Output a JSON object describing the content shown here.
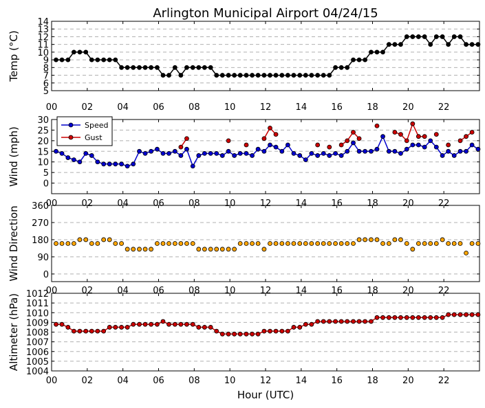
{
  "chart_data": [
    {
      "type": "line",
      "name": "temperature",
      "title": "Arlington Municipal Airport 04/24/15",
      "ylabel": "Temp (°C)",
      "xlim": [
        0,
        24
      ],
      "ylim": [
        5,
        14
      ],
      "yticks": [
        5,
        6,
        7,
        8,
        9,
        10,
        11,
        12,
        13,
        14
      ],
      "xticks": [
        0,
        2,
        4,
        6,
        8,
        10,
        12,
        14,
        16,
        18,
        20,
        22
      ],
      "xticklabels": [
        "00",
        "02",
        "04",
        "06",
        "08",
        "10",
        "12",
        "14",
        "16",
        "18",
        "20",
        "22"
      ],
      "grid": true,
      "series": [
        {
          "color": "#000000",
          "x": [
            0.25,
            0.58,
            0.92,
            1.25,
            1.58,
            1.92,
            2.25,
            2.58,
            2.92,
            3.25,
            3.58,
            3.92,
            4.25,
            4.58,
            4.92,
            5.25,
            5.58,
            5.92,
            6.25,
            6.58,
            6.92,
            7.25,
            7.58,
            7.92,
            8.25,
            8.58,
            8.92,
            9.25,
            9.58,
            9.92,
            10.25,
            10.58,
            10.92,
            11.25,
            11.58,
            11.92,
            12.25,
            12.58,
            12.92,
            13.25,
            13.58,
            13.92,
            14.25,
            14.58,
            14.92,
            15.25,
            15.58,
            15.92,
            16.25,
            16.58,
            16.92,
            17.25,
            17.58,
            17.92,
            18.25,
            18.58,
            18.92,
            19.25,
            19.58,
            19.92,
            20.25,
            20.58,
            20.92,
            21.25,
            21.58,
            21.92,
            22.25,
            22.58,
            22.92,
            23.25,
            23.58,
            23.92
          ],
          "y": [
            9,
            9,
            9,
            10,
            10,
            10,
            9,
            9,
            9,
            9,
            9,
            8,
            8,
            8,
            8,
            8,
            8,
            8,
            7,
            7,
            8,
            7,
            8,
            8,
            8,
            8,
            8,
            7,
            7,
            7,
            7,
            7,
            7,
            7,
            7,
            7,
            7,
            7,
            7,
            7,
            7,
            7,
            7,
            7,
            7,
            7,
            7,
            8,
            8,
            8,
            9,
            9,
            9,
            10,
            10,
            10,
            11,
            11,
            11,
            12,
            12,
            12,
            12,
            11,
            12,
            12,
            11,
            12,
            12,
            11,
            11,
            11
          ]
        }
      ]
    },
    {
      "type": "line",
      "name": "wind",
      "ylabel": "Wind (mph)",
      "xlim": [
        0,
        24
      ],
      "ylim": [
        -5,
        30
      ],
      "yticks": [
        0,
        5,
        10,
        15,
        20,
        25,
        30
      ],
      "xticks": [
        0,
        2,
        4,
        6,
        8,
        10,
        12,
        14,
        16,
        18,
        20,
        22
      ],
      "xticklabels": [
        "00",
        "02",
        "04",
        "06",
        "08",
        "10",
        "12",
        "14",
        "16",
        "18",
        "20",
        "22"
      ],
      "grid": true,
      "legend": "top-left",
      "series": [
        {
          "name": "Speed",
          "color": "#0000cc",
          "x": [
            0.25,
            0.58,
            0.92,
            1.25,
            1.58,
            1.92,
            2.25,
            2.58,
            2.92,
            3.25,
            3.58,
            3.92,
            4.25,
            4.58,
            4.92,
            5.25,
            5.58,
            5.92,
            6.25,
            6.58,
            6.92,
            7.25,
            7.58,
            7.92,
            8.25,
            8.58,
            8.92,
            9.25,
            9.58,
            9.92,
            10.25,
            10.58,
            10.92,
            11.25,
            11.58,
            11.92,
            12.25,
            12.58,
            12.92,
            13.25,
            13.58,
            13.92,
            14.25,
            14.58,
            14.92,
            15.25,
            15.58,
            15.92,
            16.25,
            16.58,
            16.92,
            17.25,
            17.58,
            17.92,
            18.25,
            18.58,
            18.92,
            19.25,
            19.58,
            19.92,
            20.25,
            20.58,
            20.92,
            21.25,
            21.58,
            21.92,
            22.25,
            22.58,
            22.92,
            23.25,
            23.58,
            23.92
          ],
          "y": [
            15,
            14,
            12,
            11,
            10,
            14,
            13,
            10,
            9,
            9,
            9,
            9,
            8,
            9,
            15,
            14,
            15,
            16,
            14,
            14,
            15,
            13,
            16,
            8,
            13,
            14,
            14,
            14,
            13,
            15,
            13,
            14,
            14,
            13,
            16,
            15,
            18,
            17,
            15,
            18,
            14,
            13,
            11,
            14,
            13,
            14,
            13,
            14,
            13,
            15,
            19,
            15,
            15,
            15,
            16,
            22,
            15,
            15,
            14,
            16,
            18,
            18,
            17,
            20,
            17,
            13,
            15,
            13,
            15,
            15,
            18,
            16
          ]
        },
        {
          "name": "Gust",
          "color": "#cc0000",
          "x": [
            7.25,
            7.58,
            9.92,
            10.92,
            11.92,
            12.25,
            12.58,
            14.92,
            15.58,
            16.25,
            16.58,
            16.92,
            17.25,
            18.25,
            19.25,
            19.58,
            19.92,
            20.25,
            20.58,
            20.92,
            21.58,
            22.25,
            22.92,
            23.25,
            23.58
          ],
          "y": [
            17,
            21,
            20,
            18,
            21,
            26,
            23,
            18,
            17,
            18,
            20,
            24,
            21,
            27,
            24,
            23,
            20,
            28,
            22,
            22,
            23,
            18,
            20,
            22,
            24
          ],
          "breaks_before": [
            2,
            3,
            4,
            7,
            8,
            9,
            13,
            14,
            20,
            21,
            22
          ]
        }
      ]
    },
    {
      "type": "scatter",
      "name": "wind-direction",
      "ylabel": "Wind Direction",
      "xlim": [
        0,
        24
      ],
      "ylim": [
        -40,
        360
      ],
      "yticks": [
        0,
        90,
        180,
        270,
        360
      ],
      "xticks": [
        0,
        2,
        4,
        6,
        8,
        10,
        12,
        14,
        16,
        18,
        20,
        22
      ],
      "xticklabels": [
        "00",
        "02",
        "04",
        "06",
        "08",
        "10",
        "12",
        "14",
        "16",
        "18",
        "20",
        "22"
      ],
      "grid": true,
      "series": [
        {
          "color": "#ffa500",
          "x": [
            0.25,
            0.58,
            0.92,
            1.25,
            1.58,
            1.92,
            2.25,
            2.58,
            2.92,
            3.25,
            3.58,
            3.92,
            4.25,
            4.58,
            4.92,
            5.25,
            5.58,
            5.92,
            6.25,
            6.58,
            6.92,
            7.25,
            7.58,
            7.92,
            8.25,
            8.58,
            8.92,
            9.25,
            9.58,
            9.92,
            10.25,
            10.58,
            10.92,
            11.25,
            11.58,
            11.92,
            12.25,
            12.58,
            12.92,
            13.25,
            13.58,
            13.92,
            14.25,
            14.58,
            14.92,
            15.25,
            15.58,
            15.92,
            16.25,
            16.58,
            16.92,
            17.25,
            17.58,
            17.92,
            18.25,
            18.58,
            18.92,
            19.25,
            19.58,
            19.92,
            20.25,
            20.58,
            20.92,
            21.25,
            21.58,
            21.92,
            22.25,
            22.58,
            22.92,
            23.25,
            23.58,
            23.92
          ],
          "y": [
            160,
            160,
            160,
            160,
            180,
            180,
            160,
            160,
            180,
            180,
            160,
            160,
            130,
            130,
            130,
            130,
            130,
            160,
            160,
            160,
            160,
            160,
            160,
            160,
            130,
            130,
            130,
            130,
            130,
            130,
            130,
            160,
            160,
            160,
            160,
            130,
            160,
            160,
            160,
            160,
            160,
            160,
            160,
            160,
            160,
            160,
            160,
            160,
            160,
            160,
            160,
            180,
            180,
            180,
            180,
            160,
            160,
            180,
            180,
            160,
            130,
            160,
            160,
            160,
            160,
            180,
            160,
            160,
            160,
            110,
            160,
            160
          ]
        }
      ]
    },
    {
      "type": "line",
      "name": "altimeter",
      "ylabel": "Altimeter (hPa)",
      "xlabel": "Hour (UTC)",
      "xlim": [
        0,
        24
      ],
      "ylim": [
        1004,
        1012
      ],
      "yticks": [
        1004,
        1005,
        1006,
        1007,
        1008,
        1009,
        1010,
        1011,
        1012
      ],
      "xticks": [
        0,
        2,
        4,
        6,
        8,
        10,
        12,
        14,
        16,
        18,
        20,
        22
      ],
      "xticklabels": [
        "00",
        "02",
        "04",
        "06",
        "08",
        "10",
        "12",
        "14",
        "16",
        "18",
        "20",
        "22"
      ],
      "grid": true,
      "series": [
        {
          "color": "#cc0000",
          "x": [
            0.25,
            0.58,
            0.92,
            1.25,
            1.58,
            1.92,
            2.25,
            2.58,
            2.92,
            3.25,
            3.58,
            3.92,
            4.25,
            4.58,
            4.92,
            5.25,
            5.58,
            5.92,
            6.25,
            6.58,
            6.92,
            7.25,
            7.58,
            7.92,
            8.25,
            8.58,
            8.92,
            9.25,
            9.58,
            9.92,
            10.25,
            10.58,
            10.92,
            11.25,
            11.58,
            11.92,
            12.25,
            12.58,
            12.92,
            13.25,
            13.58,
            13.92,
            14.25,
            14.58,
            14.92,
            15.25,
            15.58,
            15.92,
            16.25,
            16.58,
            16.92,
            17.25,
            17.58,
            17.92,
            18.25,
            18.58,
            18.92,
            19.25,
            19.58,
            19.92,
            20.25,
            20.58,
            20.92,
            21.25,
            21.58,
            21.92,
            22.25,
            22.58,
            22.92,
            23.25,
            23.58,
            23.92
          ],
          "y": [
            1008.8,
            1008.8,
            1008.5,
            1008.1,
            1008.1,
            1008.1,
            1008.1,
            1008.1,
            1008.1,
            1008.5,
            1008.5,
            1008.5,
            1008.5,
            1008.8,
            1008.8,
            1008.8,
            1008.8,
            1008.8,
            1009.1,
            1008.8,
            1008.8,
            1008.8,
            1008.8,
            1008.8,
            1008.5,
            1008.5,
            1008.5,
            1008.1,
            1007.8,
            1007.8,
            1007.8,
            1007.8,
            1007.8,
            1007.8,
            1007.8,
            1008.1,
            1008.1,
            1008.1,
            1008.1,
            1008.1,
            1008.5,
            1008.5,
            1008.8,
            1008.8,
            1009.1,
            1009.1,
            1009.1,
            1009.1,
            1009.1,
            1009.1,
            1009.1,
            1009.1,
            1009.1,
            1009.1,
            1009.5,
            1009.5,
            1009.5,
            1009.5,
            1009.5,
            1009.5,
            1009.5,
            1009.5,
            1009.5,
            1009.5,
            1009.5,
            1009.5,
            1009.8,
            1009.8,
            1009.8,
            1009.8,
            1009.8,
            1009.8
          ]
        }
      ]
    }
  ]
}
